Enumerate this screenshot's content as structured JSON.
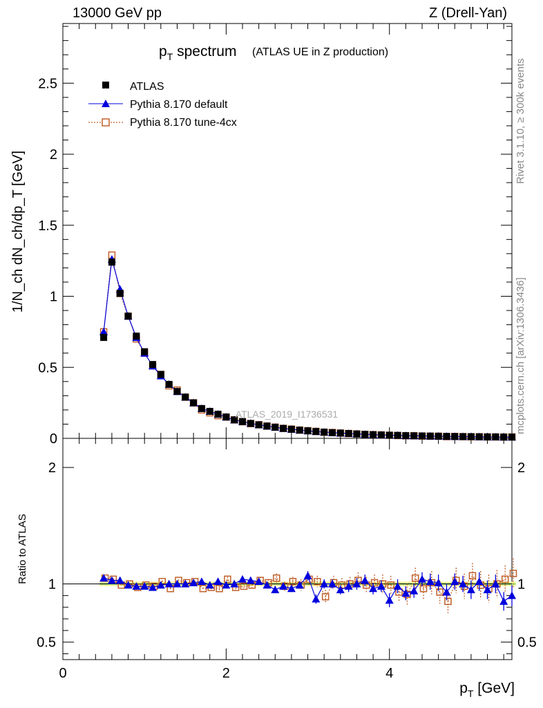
{
  "header": {
    "left": "13000 GeV pp",
    "right": "Z (Drell-Yan)"
  },
  "side_labels": {
    "rivet": "Rivet 3.1.10, ≥ 300k events",
    "mcplots": "mcplots.cern.ch [arXiv:1306.3436]"
  },
  "chart_data": [
    {
      "type": "scatter",
      "panel": "main",
      "title": "p_T spectrum",
      "title_main": "p",
      "title_sub": "T",
      "title_rest": " spectrum",
      "subtitle": "(ATLAS UE in Z production)",
      "watermark": "ATLAS_2019_I1736531",
      "ylabel": "1/N_ch dN_ch/dp_T [GeV]",
      "xlim": [
        0,
        5.5
      ],
      "ylim": [
        0,
        2.92
      ],
      "yticks": [
        0,
        0.5,
        1,
        1.5,
        2,
        2.5
      ],
      "ytick_labels": [
        "0",
        "0.5",
        "1",
        "1.5",
        "2",
        "2.5"
      ],
      "legend_position": "top-left",
      "x": [
        0.5,
        0.6,
        0.7,
        0.8,
        0.9,
        1.0,
        1.1,
        1.2,
        1.3,
        1.4,
        1.5,
        1.6,
        1.7,
        1.8,
        1.9,
        2.0,
        2.1,
        2.2,
        2.3,
        2.4,
        2.5,
        2.6,
        2.7,
        2.8,
        2.9,
        3.0,
        3.1,
        3.2,
        3.3,
        3.4,
        3.5,
        3.6,
        3.7,
        3.8,
        3.9,
        4.0,
        4.1,
        4.2,
        4.3,
        4.4,
        4.5,
        4.6,
        4.7,
        4.8,
        4.9,
        5.0,
        5.1,
        5.2,
        5.3,
        5.4,
        5.5
      ],
      "series": [
        {
          "name": "ATLAS",
          "marker": "square-filled",
          "color": "#000000",
          "values": [
            0.71,
            1.24,
            1.02,
            0.86,
            0.72,
            0.61,
            0.52,
            0.45,
            0.38,
            0.33,
            0.29,
            0.25,
            0.21,
            0.19,
            0.17,
            0.15,
            0.13,
            0.118,
            0.105,
            0.095,
            0.086,
            0.078,
            0.07,
            0.064,
            0.058,
            0.053,
            0.048,
            0.044,
            0.04,
            0.037,
            0.034,
            0.031,
            0.028,
            0.026,
            0.024,
            0.022,
            0.021,
            0.019,
            0.018,
            0.017,
            0.016,
            0.015,
            0.014,
            0.013,
            0.012,
            0.012,
            0.011,
            0.01,
            0.01,
            0.009,
            0.009
          ]
        },
        {
          "name": "Pythia 8.170 default",
          "marker": "triangle-filled",
          "color": "#0000dd",
          "values": [
            0.75,
            1.26,
            1.05,
            0.86,
            0.71,
            0.6,
            0.51,
            0.44,
            0.38,
            0.33,
            0.29,
            0.25,
            0.21,
            0.19,
            0.17,
            0.15,
            0.13,
            0.118,
            0.105,
            0.095,
            0.086,
            0.078,
            0.07,
            0.064,
            0.058,
            0.053,
            0.048,
            0.044,
            0.04,
            0.037,
            0.034,
            0.031,
            0.028,
            0.026,
            0.024,
            0.022,
            0.021,
            0.019,
            0.018,
            0.017,
            0.016,
            0.015,
            0.014,
            0.013,
            0.012,
            0.012,
            0.011,
            0.01,
            0.01,
            0.009,
            0.009
          ]
        },
        {
          "name": "Pythia 8.170 tune-4cx",
          "marker": "square-open",
          "color": "#c0602a",
          "values": [
            0.75,
            1.29,
            1.02,
            0.86,
            0.7,
            0.6,
            0.51,
            0.45,
            0.37,
            0.34,
            0.29,
            0.25,
            0.2,
            0.18,
            0.16,
            0.15,
            0.13,
            0.117,
            0.104,
            0.096,
            0.087,
            0.079,
            0.07,
            0.065,
            0.058,
            0.054,
            0.049,
            0.043,
            0.041,
            0.037,
            0.034,
            0.031,
            0.028,
            0.026,
            0.024,
            0.022,
            0.02,
            0.018,
            0.018,
            0.016,
            0.015,
            0.015,
            0.012,
            0.013,
            0.012,
            0.011,
            0.011,
            0.01,
            0.01,
            0.009,
            0.01
          ]
        }
      ]
    },
    {
      "type": "scatter",
      "panel": "ratio",
      "ylabel": "Ratio to ATLAS",
      "xlabel": "p_T [GeV]",
      "xlabel_main": "p",
      "xlabel_sub": "T",
      "xlabel_rest": " [GeV]",
      "xlim": [
        0,
        5.5
      ],
      "ylim": [
        0.35,
        2.25
      ],
      "xticks": [
        0,
        2,
        4
      ],
      "xtick_labels": [
        "0",
        "2",
        "4"
      ],
      "yticks": [
        0.5,
        1,
        2
      ],
      "ytick_labels": [
        "0.5",
        "1",
        "2"
      ],
      "x": [
        0.5,
        0.6,
        0.7,
        0.8,
        0.9,
        1.0,
        1.1,
        1.2,
        1.3,
        1.4,
        1.5,
        1.6,
        1.7,
        1.8,
        1.9,
        2.0,
        2.1,
        2.2,
        2.3,
        2.4,
        2.5,
        2.6,
        2.7,
        2.8,
        2.9,
        3.0,
        3.1,
        3.2,
        3.3,
        3.4,
        3.5,
        3.6,
        3.7,
        3.8,
        3.9,
        4.0,
        4.1,
        4.2,
        4.3,
        4.4,
        4.5,
        4.6,
        4.7,
        4.8,
        4.9,
        5.0,
        5.1,
        5.2,
        5.3,
        5.4,
        5.5
      ],
      "series": [
        {
          "name": "Pythia 8.170 default",
          "marker": "triangle-filled",
          "color": "#0000dd",
          "values": [
            1.05,
            1.03,
            1.03,
            0.99,
            0.98,
            0.98,
            0.97,
            0.99,
            1.0,
            1.0,
            1.0,
            1.01,
            1.02,
            0.99,
            1.02,
            0.99,
            1.0,
            1.04,
            1.03,
            1.02,
            0.99,
            0.95,
            0.98,
            0.96,
            0.99,
            1.07,
            0.87,
            1.0,
            1.0,
            0.95,
            0.98,
            1.0,
            1.03,
            0.96,
            0.98,
            0.86,
            0.98,
            0.92,
            0.94,
            1.04,
            1.02,
            1.01,
            0.93,
            1.02,
            1.0,
            0.95,
            1.02,
            0.95,
            1.0,
            0.85,
            0.9
          ],
          "errors": [
            0.01,
            0.01,
            0.01,
            0.01,
            0.01,
            0.01,
            0.01,
            0.01,
            0.01,
            0.01,
            0.01,
            0.01,
            0.01,
            0.01,
            0.02,
            0.02,
            0.02,
            0.02,
            0.02,
            0.02,
            0.03,
            0.03,
            0.03,
            0.03,
            0.03,
            0.04,
            0.04,
            0.04,
            0.04,
            0.04,
            0.05,
            0.05,
            0.05,
            0.05,
            0.05,
            0.06,
            0.06,
            0.06,
            0.06,
            0.06,
            0.07,
            0.07,
            0.07,
            0.07,
            0.07,
            0.08,
            0.08,
            0.08,
            0.08,
            0.08,
            0.09
          ]
        },
        {
          "name": "Pythia 8.170 tune-4cx",
          "marker": "square-open",
          "color": "#c0602a",
          "values": [
            1.05,
            1.04,
            0.99,
            1.0,
            0.97,
            0.99,
            0.98,
            1.02,
            0.96,
            1.03,
            1.01,
            1.02,
            0.96,
            0.97,
            0.96,
            1.04,
            0.97,
            0.98,
            0.99,
            1.03,
            1.01,
            1.05,
            0.98,
            1.02,
            0.99,
            1.04,
            1.02,
            0.89,
            1.01,
            0.99,
            1.0,
            1.03,
            0.99,
            1.01,
            1.0,
            0.99,
            0.93,
            0.91,
            1.05,
            0.96,
            1.01,
            0.93,
            0.85,
            1.03,
            0.98,
            1.07,
            0.99,
            0.96,
            1.0,
            1.04,
            1.09
          ],
          "errors": [
            0.01,
            0.01,
            0.01,
            0.01,
            0.01,
            0.01,
            0.01,
            0.01,
            0.01,
            0.01,
            0.01,
            0.01,
            0.01,
            0.02,
            0.02,
            0.02,
            0.02,
            0.02,
            0.03,
            0.03,
            0.03,
            0.04,
            0.04,
            0.04,
            0.05,
            0.05,
            0.05,
            0.06,
            0.06,
            0.06,
            0.06,
            0.07,
            0.07,
            0.07,
            0.08,
            0.08,
            0.08,
            0.09,
            0.09,
            0.09,
            0.1,
            0.1,
            0.1,
            0.11,
            0.11,
            0.11,
            0.12,
            0.12,
            0.12,
            0.12,
            0.13
          ]
        }
      ]
    }
  ]
}
